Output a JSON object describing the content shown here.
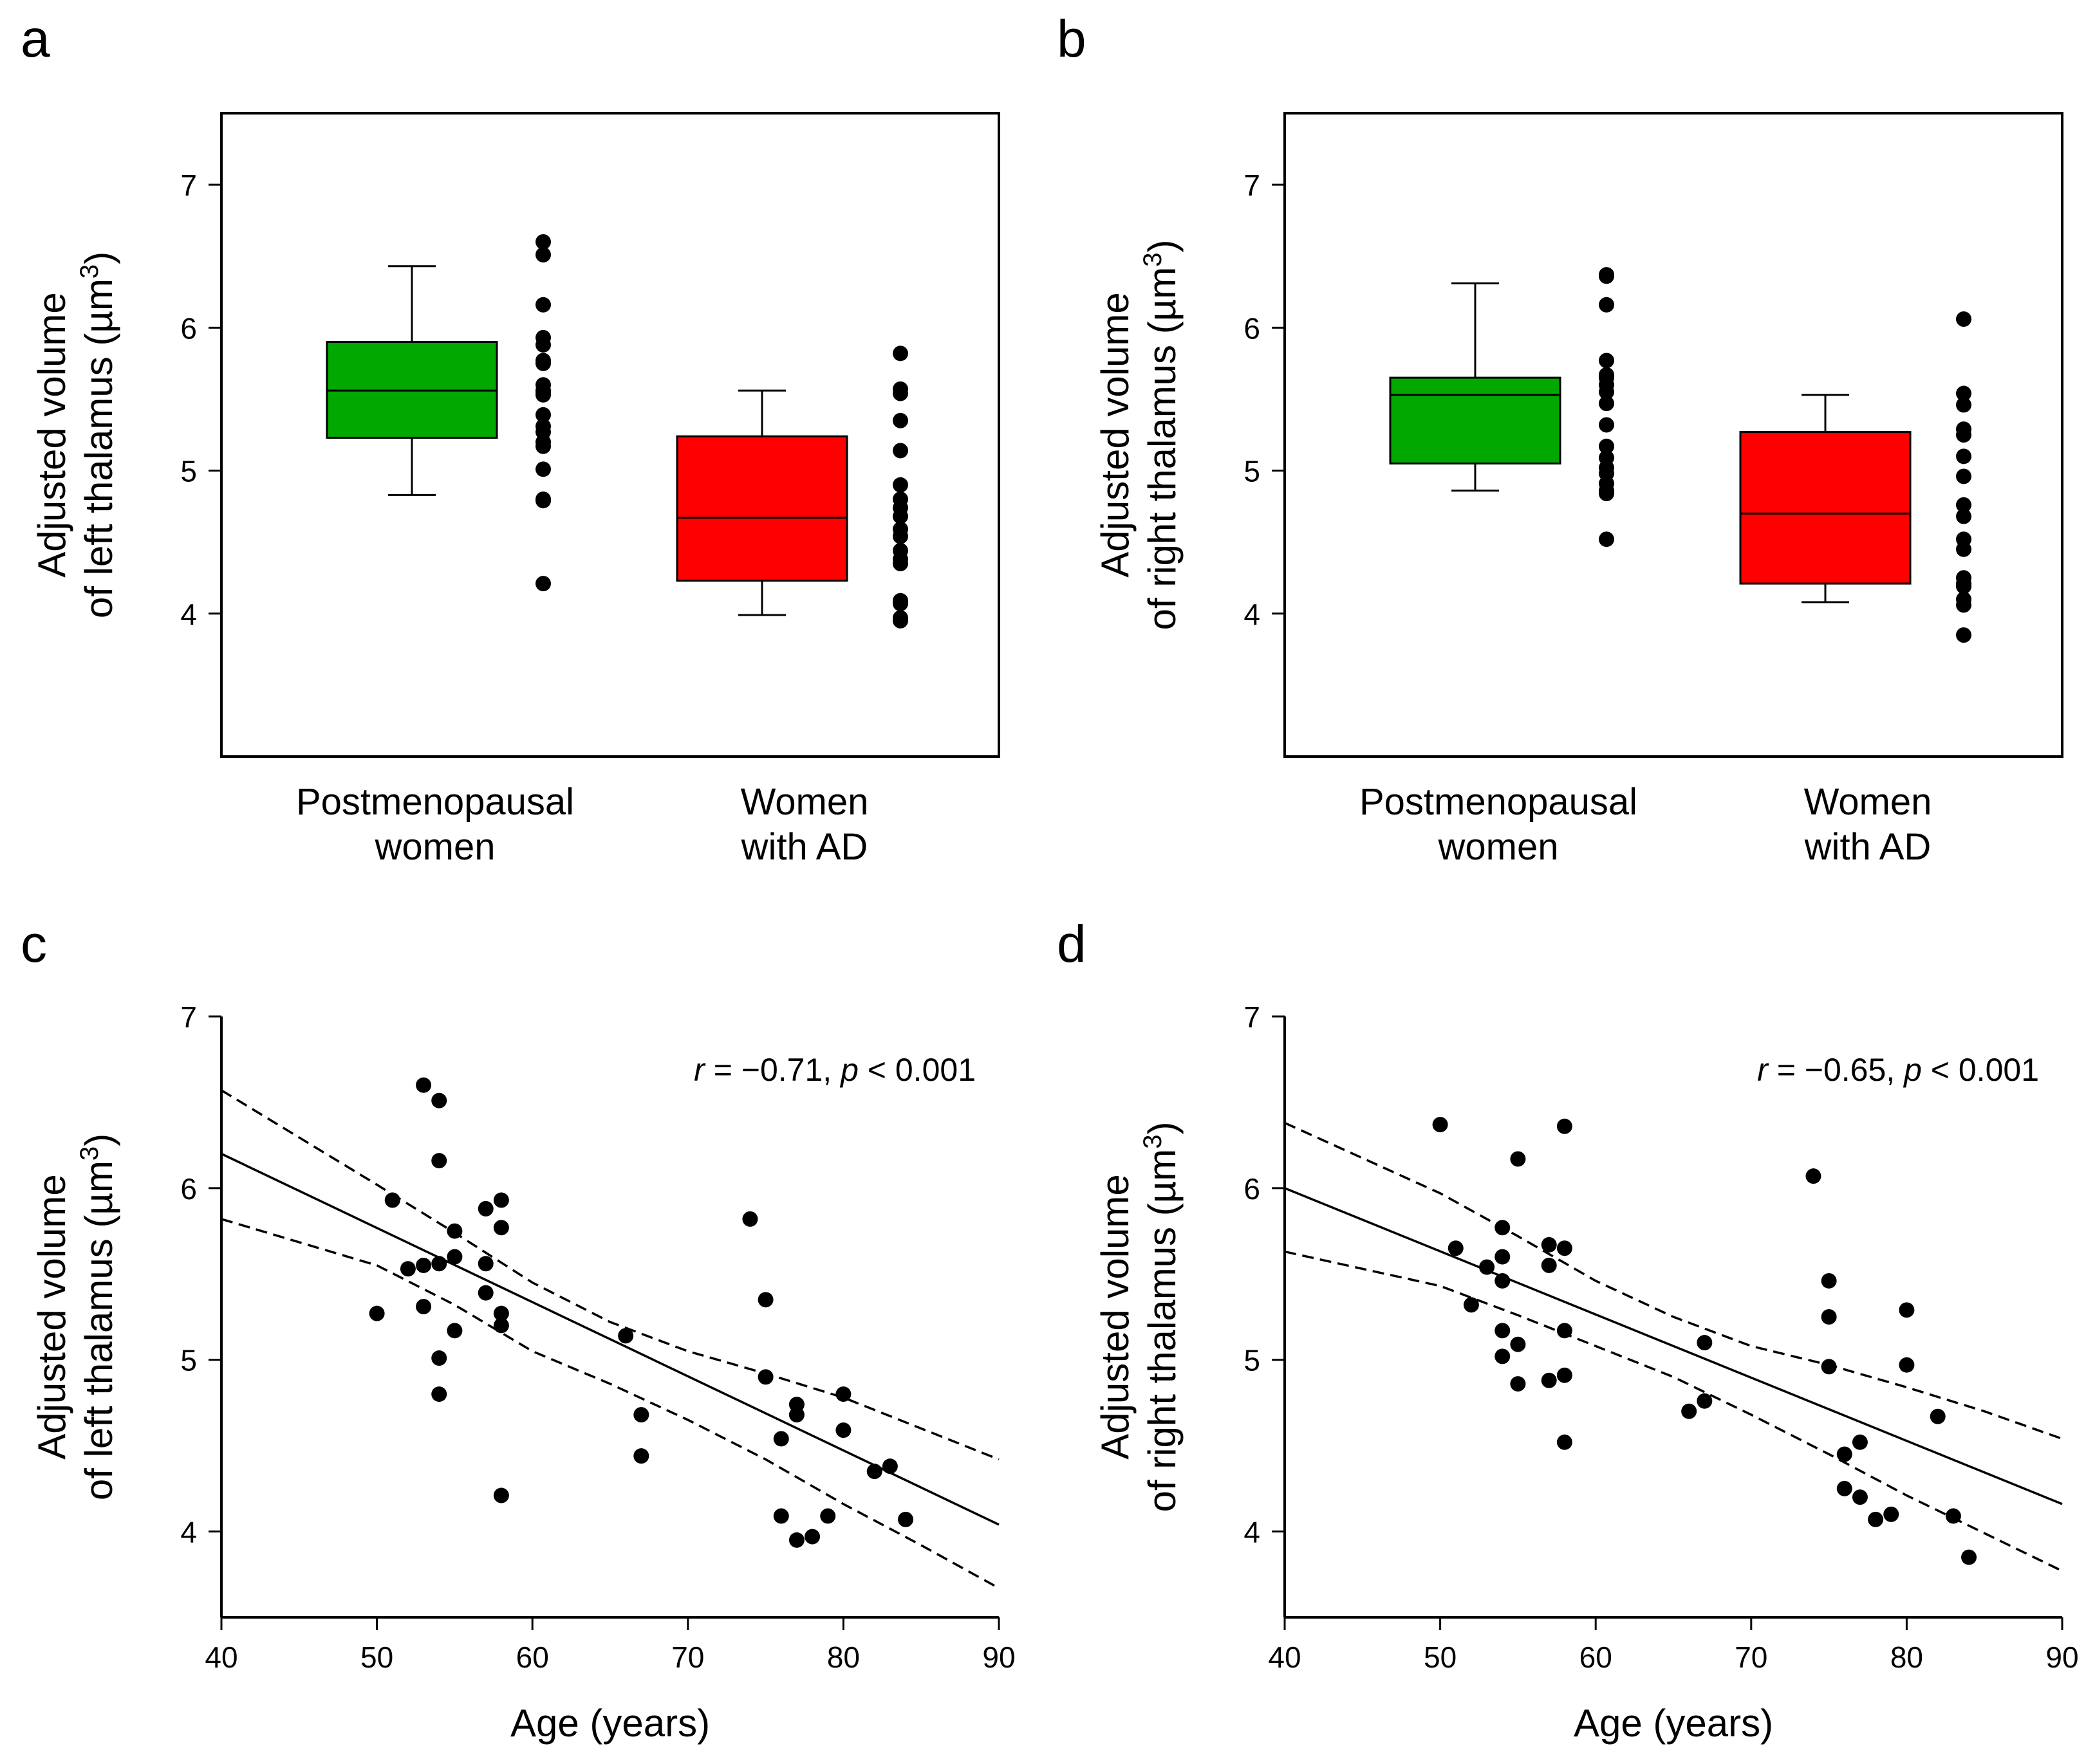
{
  "colors": {
    "postmenopausal_box": "#00a800",
    "ad_box": "#ff0000",
    "ink": "#000000",
    "background": "#ffffff"
  },
  "chart_data": [
    {
      "panel": "a",
      "type": "box",
      "ylabel_line1": "Adjusted volume",
      "ylabel_line2": "of left thalamus (µm",
      "ylabel_sup": "3",
      "ylabel_close": ")",
      "ylim": [
        3,
        7.5
      ],
      "yticks": [
        "4",
        "5",
        "6",
        "7"
      ],
      "groups": [
        {
          "name_line1": "Postmenopausal",
          "name_line2": "women",
          "color": "#00a800",
          "whisker_low": 4.83,
          "q1": 5.23,
          "median": 5.56,
          "q3": 5.9,
          "whisker_high": 6.43,
          "points": [
            6.6,
            6.51,
            6.16,
            5.93,
            5.88,
            5.77,
            5.75,
            5.6,
            5.56,
            5.55,
            5.53,
            5.39,
            5.31,
            5.27,
            5.2,
            5.17,
            5.01,
            4.8,
            4.79,
            4.21
          ]
        },
        {
          "name_line1": "Women",
          "name_line2": "with AD",
          "color": "#ff0000",
          "whisker_low": 3.99,
          "q1": 4.23,
          "median": 4.67,
          "q3": 5.24,
          "whisker_high": 5.56,
          "points": [
            5.82,
            5.57,
            5.54,
            5.35,
            5.14,
            4.9,
            4.8,
            4.74,
            4.68,
            4.59,
            4.54,
            4.44,
            4.38,
            4.35,
            4.09,
            4.07,
            3.97,
            3.95
          ]
        }
      ]
    },
    {
      "panel": "b",
      "type": "box",
      "ylabel_line1": "Adjusted volume",
      "ylabel_line2": "of right thalamus (µm",
      "ylabel_sup": "3",
      "ylabel_close": ")",
      "ylim": [
        3,
        7.5
      ],
      "yticks": [
        "4",
        "5",
        "6",
        "7"
      ],
      "groups": [
        {
          "name_line1": "Postmenopausal",
          "name_line2": "women",
          "color": "#00a800",
          "whisker_low": 4.86,
          "q1": 5.05,
          "median": 5.53,
          "q3": 5.65,
          "whisker_high": 6.31,
          "points": [
            6.37,
            6.36,
            6.16,
            5.77,
            5.67,
            5.65,
            5.6,
            5.55,
            5.47,
            5.32,
            5.17,
            5.09,
            5.02,
            4.98,
            4.91,
            4.86,
            4.84,
            4.52
          ]
        },
        {
          "name_line1": "Women",
          "name_line2": "with AD",
          "color": "#ff0000",
          "whisker_low": 4.08,
          "q1": 4.21,
          "median": 4.7,
          "q3": 5.27,
          "whisker_high": 5.53,
          "points": [
            6.06,
            5.54,
            5.46,
            5.29,
            5.25,
            5.1,
            4.96,
            4.76,
            4.68,
            4.52,
            4.45,
            4.25,
            4.21,
            4.19,
            4.1,
            4.06,
            3.85
          ]
        }
      ]
    },
    {
      "panel": "c",
      "type": "scatter",
      "xlabel": "Age (years)",
      "ylabel_line1": "Adjusted volume",
      "ylabel_line2": "of left thalamus (µm",
      "ylabel_sup": "3",
      "ylabel_close": ")",
      "xlim": [
        40,
        90
      ],
      "ylim": [
        3.5,
        7
      ],
      "xticks": [
        "40",
        "50",
        "60",
        "70",
        "80",
        "90"
      ],
      "yticks": [
        "4",
        "5",
        "6",
        "7"
      ],
      "annotation": {
        "r": "r",
        "r_value": " = −0.71, ",
        "p": "p",
        "p_value": " < 0.001"
      },
      "fit": {
        "x": [
          40,
          90
        ],
        "y": [
          6.2,
          4.04
        ]
      },
      "ci_upper": {
        "x": [
          40,
          50,
          55,
          60,
          65,
          70,
          75,
          80,
          85,
          90
        ],
        "y": [
          6.57,
          6.02,
          5.74,
          5.45,
          5.22,
          5.05,
          4.92,
          4.78,
          4.6,
          4.42
        ]
      },
      "ci_lower": {
        "x": [
          40,
          50,
          55,
          60,
          65,
          70,
          75,
          80,
          85,
          90
        ],
        "y": [
          5.82,
          5.55,
          5.32,
          5.05,
          4.86,
          4.65,
          4.42,
          4.16,
          3.92,
          3.67
        ]
      },
      "points": {
        "x": [
          50,
          51,
          52,
          53,
          53,
          53,
          54,
          54,
          54,
          54,
          54,
          55,
          55,
          55,
          57,
          57,
          57,
          58,
          58,
          58,
          58,
          58,
          66,
          67,
          67,
          74,
          75,
          75,
          76,
          76,
          77,
          77,
          77,
          78,
          79,
          80,
          80,
          82,
          83,
          84
        ],
        "y": [
          5.27,
          5.93,
          5.53,
          6.6,
          5.55,
          5.31,
          6.51,
          6.16,
          5.56,
          5.01,
          4.8,
          5.75,
          5.6,
          5.17,
          5.88,
          5.56,
          5.39,
          5.93,
          5.77,
          5.27,
          5.2,
          4.21,
          5.14,
          4.68,
          4.44,
          5.82,
          5.35,
          4.9,
          4.54,
          4.09,
          4.74,
          4.68,
          3.95,
          3.97,
          4.09,
          4.8,
          4.59,
          4.35,
          4.38,
          4.07
        ]
      }
    },
    {
      "panel": "d",
      "type": "scatter",
      "xlabel": "Age (years)",
      "ylabel_line1": "Adjusted volume",
      "ylabel_line2": "of right thalamus (µm",
      "ylabel_sup": "3",
      "ylabel_close": ")",
      "xlim": [
        40,
        90
      ],
      "ylim": [
        3.5,
        7
      ],
      "xticks": [
        "40",
        "50",
        "60",
        "70",
        "80",
        "90"
      ],
      "yticks": [
        "4",
        "5",
        "6",
        "7"
      ],
      "annotation": {
        "r": "r",
        "r_value": " = −0.65, ",
        "p": "p",
        "p_value": " < 0.001"
      },
      "fit": {
        "x": [
          40,
          90
        ],
        "y": [
          6.0,
          4.16
        ]
      },
      "ci_upper": {
        "x": [
          40,
          50,
          55,
          60,
          65,
          70,
          75,
          80,
          85,
          90
        ],
        "y": [
          6.38,
          5.97,
          5.72,
          5.46,
          5.25,
          5.08,
          4.97,
          4.84,
          4.7,
          4.54
        ]
      },
      "ci_lower": {
        "x": [
          40,
          50,
          55,
          60,
          65,
          70,
          75,
          80,
          85,
          90
        ],
        "y": [
          5.63,
          5.43,
          5.26,
          5.08,
          4.9,
          4.68,
          4.45,
          4.21,
          3.99,
          3.77
        ]
      },
      "points": {
        "x": [
          50,
          51,
          52,
          53,
          54,
          54,
          54,
          54,
          54,
          55,
          55,
          55,
          57,
          57,
          57,
          58,
          58,
          58,
          58,
          58,
          66,
          67,
          67,
          74,
          75,
          75,
          75,
          76,
          76,
          77,
          77,
          78,
          79,
          80,
          80,
          82,
          83,
          84
        ],
        "y": [
          6.37,
          5.65,
          5.32,
          5.54,
          5.77,
          5.6,
          5.46,
          5.17,
          5.02,
          6.17,
          5.09,
          4.86,
          5.67,
          5.55,
          4.88,
          6.36,
          5.65,
          5.17,
          4.91,
          4.52,
          4.7,
          5.1,
          4.76,
          6.07,
          5.46,
          5.25,
          4.96,
          4.45,
          4.25,
          4.52,
          4.2,
          4.07,
          4.1,
          5.29,
          4.97,
          4.67,
          4.09,
          3.85
        ]
      }
    }
  ]
}
